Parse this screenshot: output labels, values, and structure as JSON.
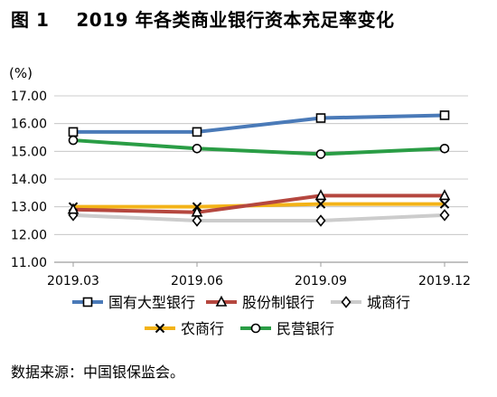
{
  "figure": {
    "number": "图 1",
    "title": "2019 年各类商业银行资本充足率变化",
    "source": "数据来源：中国银保监会。"
  },
  "chart_data": {
    "type": "line",
    "unit_label": "(%)",
    "categories": [
      "2019.03",
      "2019.06",
      "2019.09",
      "2019.12"
    ],
    "ylim": [
      11.0,
      17.0
    ],
    "yticks": [
      "11.00",
      "12.00",
      "13.00",
      "14.00",
      "15.00",
      "16.00",
      "17.00"
    ],
    "grid": true,
    "legend_position": "bottom",
    "series": [
      {
        "name": "国有大型银行",
        "color": "#4a7ab8",
        "marker": "square",
        "values": [
          15.7,
          15.7,
          16.2,
          16.3
        ]
      },
      {
        "name": "股份制银行",
        "color": "#b5473f",
        "marker": "triangle",
        "values": [
          12.9,
          12.8,
          13.4,
          13.4
        ]
      },
      {
        "name": "城商行",
        "color": "#cccccc",
        "marker": "diamond",
        "values": [
          12.7,
          12.5,
          12.5,
          12.7
        ]
      },
      {
        "name": "农商行",
        "color": "#f3b318",
        "marker": "x",
        "values": [
          13.0,
          13.0,
          13.1,
          13.1
        ]
      },
      {
        "name": "民营银行",
        "color": "#2a9d45",
        "marker": "circle",
        "values": [
          15.4,
          15.1,
          14.9,
          15.1
        ]
      }
    ]
  }
}
